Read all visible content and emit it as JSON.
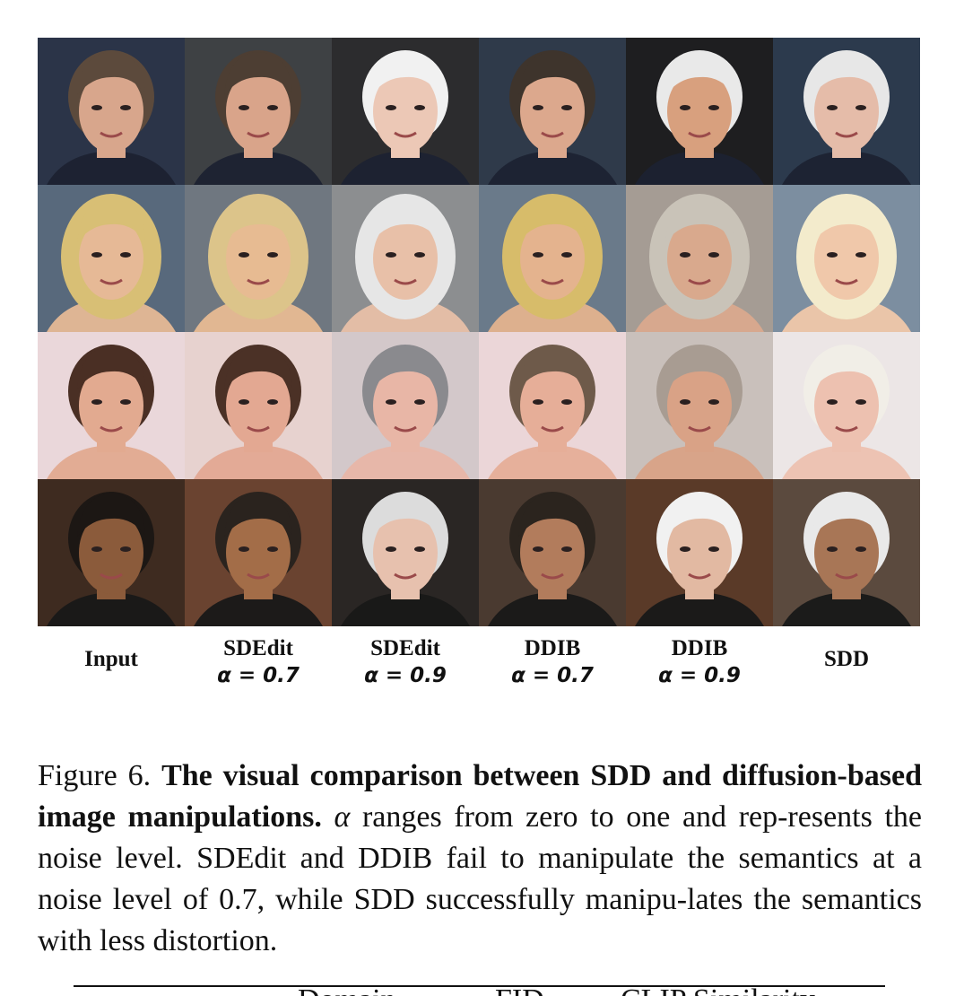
{
  "figure": {
    "columns": [
      {
        "line1": "Input",
        "line2": ""
      },
      {
        "line1": "SDEdit",
        "line2": "α = 0.7"
      },
      {
        "line1": "SDEdit",
        "line2": "α = 0.9"
      },
      {
        "line1": "DDIB",
        "line2": "α = 0.7"
      },
      {
        "line1": "DDIB",
        "line2": "α = 0.9"
      },
      {
        "line1": "SDD",
        "line2": ""
      }
    ],
    "rows": [
      {
        "bg": "#2a3346",
        "skin": "#d9a88e",
        "hair": "#6b5a4c",
        "cells": [
          "input-face",
          "sdedit-face",
          "sdedit-face",
          "ddib-face",
          "ddib-face",
          "sdd-face"
        ]
      },
      {
        "bg": "#5a6a7c",
        "skin": "#e3b796",
        "hair": "#d8c07a"
      },
      {
        "bg": "#e4d6d8",
        "skin": "#e1a990",
        "hair": "#4a2f24"
      },
      {
        "bg": "#3b2a20",
        "skin": "#8a5a3a",
        "hair": "#1c1714"
      }
    ],
    "hair_variants": [
      [
        "#5c4a3c",
        "#4d3e33",
        "#f1f1f1",
        "#3e342c",
        "#e9e9e9",
        "#e7e7e7"
      ],
      [
        "#d8bf75",
        "#dcc48a",
        "#e6e6e6",
        "#d7bc6a",
        "#c9c3b8",
        "#f3ebcc"
      ],
      [
        "#4a2f24",
        "#4b3126",
        "#8a8a8e",
        "#6e5a4a",
        "#a89c92",
        "#f1eee7"
      ],
      [
        "#1c1714",
        "#2a231e",
        "#dcdcdc",
        "#2b241e",
        "#f1f1f1",
        "#e9e9e9"
      ]
    ],
    "skin_variants": [
      [
        "#d8a68c",
        "#d9a48a",
        "#ecc8b6",
        "#dca88d",
        "#d8a07e",
        "#e5bca9"
      ],
      [
        "#e6b996",
        "#e7bb92",
        "#e8c0a8",
        "#e4b38e",
        "#d9a98d",
        "#f0c8aa"
      ],
      [
        "#e2aa90",
        "#e3a892",
        "#e8b6a6",
        "#e6ae98",
        "#d9a286",
        "#edc1b0"
      ],
      [
        "#8b5b3b",
        "#a36d48",
        "#e7c1ae",
        "#b27c5c",
        "#e2b9a2",
        "#a87656"
      ]
    ],
    "bg_variants": [
      [
        "#2b3448",
        "#3e4144",
        "#2c2c2e",
        "#2f3a4a",
        "#1e1e20",
        "#2c3a4d"
      ],
      [
        "#58697c",
        "#6f7780",
        "#8c8e90",
        "#6a7a8a",
        "#a59c94",
        "#7c8ea0"
      ],
      [
        "#ead7da",
        "#e7d2cf",
        "#d3c8ca",
        "#ebd6d8",
        "#c9c0bb",
        "#ece6e6"
      ],
      [
        "#3e2b20",
        "#6a4330",
        "#2a2624",
        "#4a3a30",
        "#5a3a28",
        "#5b4a3e"
      ]
    ]
  },
  "caption": {
    "lead": "Figure 6. ",
    "bold": "The visual comparison between SDD and diffusion-based image manipulations.",
    "alpha": "α",
    "rest_1": " ranges from zero to one and rep-resents the noise level. SDEdit and DDIB fail to manipulate the semantics at a noise level of 0.7, while SDD successfully manipu-lates the semantics with less distortion."
  },
  "table_fragment": {
    "col1": "Domain",
    "col2": "FID",
    "col3": "CLIP Similarity"
  }
}
